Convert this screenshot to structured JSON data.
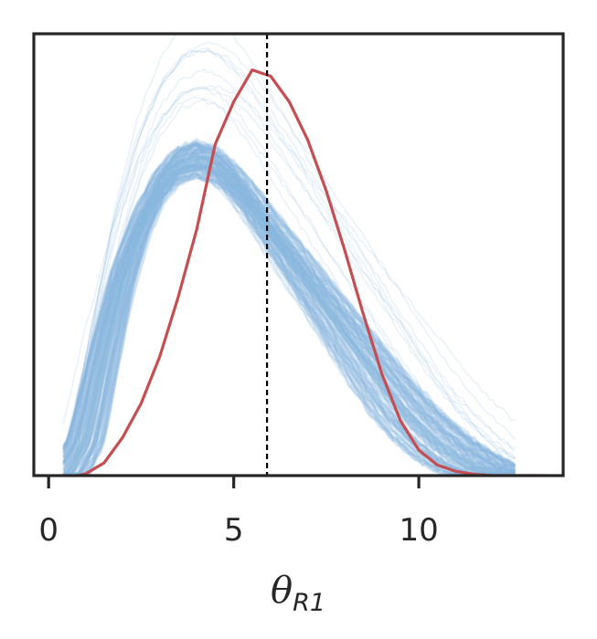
{
  "chart_data": {
    "type": "line",
    "title": "",
    "xlabel": "θ_R1",
    "xlabel_symbol": "θ",
    "xlabel_subscript": "R1",
    "ylabel": "",
    "xlim": [
      -0.4,
      13.9
    ],
    "ylim": [
      0,
      1.04
    ],
    "xticks": [
      0,
      5,
      10
    ],
    "xtick_labels": [
      "0",
      "5",
      "10"
    ],
    "yticks": [],
    "grid": false,
    "legend": "none",
    "reference_line": {
      "x": 5.9,
      "style": "dashed",
      "color": "#000000"
    },
    "series": [
      {
        "role": "posterior-predictive-ensemble",
        "color": "#89b8dd",
        "count": 120,
        "x_start": 0.4,
        "x_end": 12.6,
        "values_central": [
          [
            0.5,
            0.0
          ],
          [
            1.0,
            0.08
          ],
          [
            1.5,
            0.28
          ],
          [
            2.0,
            0.46
          ],
          [
            2.5,
            0.59
          ],
          [
            3.0,
            0.68
          ],
          [
            3.5,
            0.73
          ],
          [
            4.0,
            0.745
          ],
          [
            4.5,
            0.73
          ],
          [
            5.0,
            0.69
          ],
          [
            5.5,
            0.635
          ],
          [
            6.0,
            0.575
          ],
          [
            6.5,
            0.515
          ],
          [
            7.0,
            0.455
          ],
          [
            7.5,
            0.395
          ],
          [
            8.0,
            0.335
          ],
          [
            8.5,
            0.275
          ],
          [
            9.0,
            0.215
          ],
          [
            9.5,
            0.16
          ],
          [
            10.0,
            0.115
          ],
          [
            10.5,
            0.075
          ],
          [
            11.0,
            0.045
          ],
          [
            11.5,
            0.02
          ],
          [
            12.0,
            0.005
          ],
          [
            12.5,
            0.0
          ]
        ]
      },
      {
        "role": "observed-kde",
        "color": "#c44e52",
        "values": [
          [
            0.8,
            0.0
          ],
          [
            1.0,
            0.004
          ],
          [
            1.5,
            0.03
          ],
          [
            2.0,
            0.09
          ],
          [
            2.5,
            0.17
          ],
          [
            3.0,
            0.28
          ],
          [
            3.5,
            0.42
          ],
          [
            4.0,
            0.58
          ],
          [
            4.5,
            0.78
          ],
          [
            5.0,
            0.88
          ],
          [
            5.5,
            0.955
          ],
          [
            6.0,
            0.94
          ],
          [
            6.5,
            0.88
          ],
          [
            7.0,
            0.79
          ],
          [
            7.5,
            0.67
          ],
          [
            8.0,
            0.53
          ],
          [
            8.5,
            0.38
          ],
          [
            9.0,
            0.24
          ],
          [
            9.5,
            0.13
          ],
          [
            10.0,
            0.06
          ],
          [
            10.5,
            0.025
          ],
          [
            11.0,
            0.01
          ],
          [
            11.5,
            0.003
          ],
          [
            12.0,
            0.0
          ],
          [
            13.4,
            0.0
          ]
        ]
      }
    ]
  }
}
